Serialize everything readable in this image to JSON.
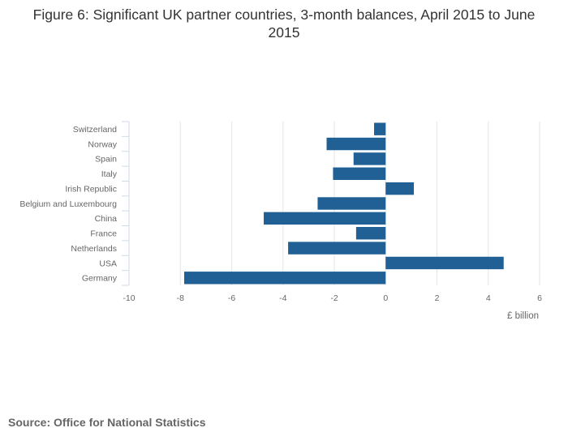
{
  "title": "Figure 6: Significant UK partner countries, 3-month balances, April 2015 to June 2015",
  "source": "Source: Office for National Statistics",
  "colors": {
    "bar": "#206095",
    "grid": "#e6e6e6",
    "axis_text": "#666666"
  },
  "chart_data": {
    "type": "bar",
    "orientation": "horizontal",
    "title": "Figure 6: Significant UK partner countries, 3-month balances, April 2015 to June 2015",
    "xlabel": "£ billion",
    "ylabel": "",
    "xlim": [
      -10,
      6
    ],
    "xticks": [
      -10,
      -8,
      -6,
      -4,
      -2,
      0,
      2,
      4,
      6
    ],
    "grid": true,
    "categories": [
      "Switzerland",
      "Norway",
      "Spain",
      "Italy",
      "Irish Republic",
      "Belgium and Luxembourg",
      "China",
      "France",
      "Netherlands",
      "USA",
      "Germany"
    ],
    "values": [
      -0.45,
      -2.3,
      -1.25,
      -2.05,
      1.1,
      -2.65,
      -4.75,
      -1.15,
      -3.8,
      4.6,
      -7.85
    ]
  }
}
